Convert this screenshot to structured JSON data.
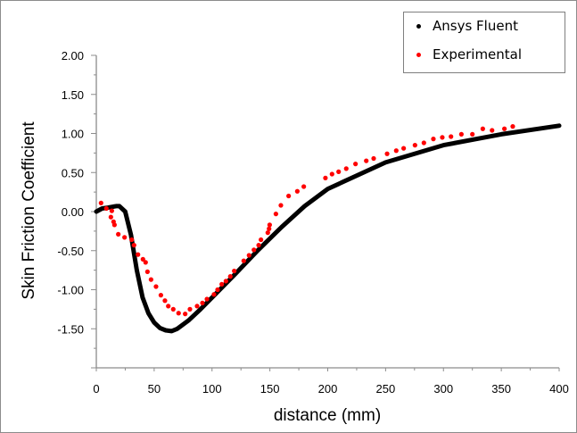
{
  "chart_data": {
    "type": "scatter",
    "title": "",
    "xlabel": "distance (mm)",
    "ylabel": "Skin Friction Coefficient",
    "xlim": [
      0,
      400
    ],
    "ylim": [
      -2,
      2
    ],
    "x_ticks": [
      "0",
      "50",
      "100",
      "150",
      "200",
      "250",
      "300",
      "350",
      "400"
    ],
    "y_ticks": [
      "2.00",
      "1.50",
      "1.00",
      "0.50",
      "0.00",
      "-0.50",
      "-1.00",
      "-1.50"
    ],
    "grid": false,
    "legend_position": "top-right",
    "series": [
      {
        "name": "Ansys Fluent",
        "style": "line",
        "color": "#000000",
        "x": [
          0,
          5,
          10,
          17,
          20,
          25,
          30,
          35,
          40,
          45,
          50,
          55,
          60,
          65,
          70,
          80,
          90,
          100,
          120,
          140,
          160,
          180,
          200,
          250,
          300,
          350,
          400
        ],
        "y": [
          0,
          0.04,
          0.05,
          0.07,
          0.07,
          0.0,
          -0.3,
          -0.75,
          -1.1,
          -1.3,
          -1.42,
          -1.49,
          -1.52,
          -1.53,
          -1.5,
          -1.39,
          -1.25,
          -1.1,
          -0.8,
          -0.49,
          -0.2,
          0.07,
          0.29,
          0.63,
          0.85,
          0.99,
          1.1
        ]
      },
      {
        "name": "Experimental",
        "style": "markers",
        "color": "#ff0000",
        "x": [
          4.1,
          8.7,
          13.4,
          12.6,
          14.9,
          15.7,
          19,
          24.4,
          30.6,
          32.6,
          36,
          40.3,
          42.6,
          44.2,
          47.3,
          51.6,
          55.8,
          59.3,
          62.2,
          66.5,
          71.1,
          76.8,
          80.9,
          87.1,
          91.7,
          95.6,
          101.7,
          104.8,
          108.4,
          112,
          115.8,
          119.2,
          127.4,
          132,
          136.2,
          140.3,
          142.3,
          148.2,
          149.3,
          149.8,
          155.2,
          159.5,
          166.2,
          173.7,
          179.3,
          198,
          203.7,
          209.4,
          216,
          224,
          233.3,
          239.7,
          251.3,
          259.2,
          265.6,
          275.4,
          283.1,
          291.3,
          299,
          306.5,
          315.5,
          325,
          334,
          342,
          352.7,
          359.9
        ],
        "y": [
          0.11,
          0.04,
          0.01,
          -0.07,
          -0.13,
          -0.17,
          -0.29,
          -0.33,
          -0.36,
          -0.43,
          -0.55,
          -0.61,
          -0.65,
          -0.77,
          -0.87,
          -0.96,
          -1.07,
          -1.14,
          -1.21,
          -1.25,
          -1.3,
          -1.31,
          -1.25,
          -1.21,
          -1.17,
          -1.12,
          -1.06,
          -1.0,
          -0.93,
          -0.89,
          -0.83,
          -0.76,
          -0.63,
          -0.56,
          -0.49,
          -0.43,
          -0.36,
          -0.27,
          -0.22,
          -0.17,
          -0.03,
          0.08,
          0.2,
          0.26,
          0.32,
          0.43,
          0.48,
          0.51,
          0.55,
          0.61,
          0.65,
          0.68,
          0.74,
          0.78,
          0.81,
          0.85,
          0.88,
          0.93,
          0.95,
          0.96,
          0.99,
          0.99,
          1.06,
          1.04,
          1.06,
          1.09
        ]
      }
    ]
  }
}
